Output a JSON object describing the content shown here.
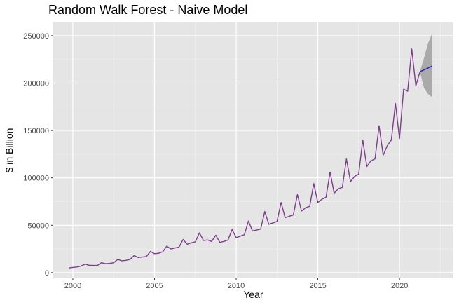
{
  "chart_data": {
    "type": "line",
    "title": "Random Walk Forest - Naive Model",
    "xlabel": "Year",
    "ylabel": "$ in Billion",
    "xlim": [
      1998.8,
      2023.3
    ],
    "ylim": [
      -6000,
      264000
    ],
    "x_ticks": [
      2000,
      2005,
      2010,
      2015,
      2020
    ],
    "y_ticks": [
      0,
      50000,
      100000,
      150000,
      200000,
      250000
    ],
    "y_tick_labels": [
      "0",
      "50000",
      "100000",
      "150000",
      "200000",
      "250000"
    ],
    "grid": true,
    "legend": "none",
    "colors": {
      "panel_background": "#e5e5e5",
      "grid_major": "#ffffff",
      "grid_minor": "#f2f2f2",
      "history_line": "#7d3c8c",
      "forecast_line": "#1f1fd1",
      "interval_band": "#a6a6a6"
    },
    "series": [
      {
        "role": "history",
        "x": [
          1999.75,
          2000.0,
          2000.25,
          2000.5,
          2000.75,
          2001.0,
          2001.25,
          2001.5,
          2001.75,
          2002.0,
          2002.25,
          2002.5,
          2002.75,
          2003.0,
          2003.25,
          2003.5,
          2003.75,
          2004.0,
          2004.25,
          2004.5,
          2004.75,
          2005.0,
          2005.25,
          2005.5,
          2005.75,
          2006.0,
          2006.25,
          2006.5,
          2006.75,
          2007.0,
          2007.25,
          2007.5,
          2007.75,
          2008.0,
          2008.25,
          2008.5,
          2008.75,
          2009.0,
          2009.25,
          2009.5,
          2009.75,
          2010.0,
          2010.25,
          2010.5,
          2010.75,
          2011.0,
          2011.25,
          2011.5,
          2011.75,
          2012.0,
          2012.25,
          2012.5,
          2012.75,
          2013.0,
          2013.25,
          2013.5,
          2013.75,
          2014.0,
          2014.25,
          2014.5,
          2014.75,
          2015.0,
          2015.25,
          2015.5,
          2015.75,
          2016.0,
          2016.25,
          2016.5,
          2016.75,
          2017.0,
          2017.25,
          2017.5,
          2017.75,
          2018.0,
          2018.25,
          2018.5,
          2018.75,
          2019.0,
          2019.25,
          2019.5,
          2019.75,
          2020.0,
          2020.25,
          2020.5,
          2020.75,
          2021.0,
          2021.25
        ],
        "values": [
          5000,
          5500,
          6000,
          7000,
          9000,
          7800,
          7600,
          7600,
          10500,
          9500,
          9800,
          10500,
          14000,
          12500,
          13000,
          14000,
          18000,
          16000,
          16500,
          17000,
          22500,
          20000,
          20500,
          22000,
          28000,
          25000,
          26000,
          27000,
          35000,
          30000,
          31500,
          32500,
          42000,
          34000,
          34500,
          33000,
          39500,
          32000,
          33000,
          34500,
          45500,
          37000,
          38500,
          40000,
          54500,
          44000,
          45000,
          46000,
          64500,
          51000,
          52500,
          54000,
          74000,
          58000,
          59500,
          61000,
          82500,
          65000,
          68500,
          70000,
          94000,
          74000,
          77500,
          79500,
          106000,
          84000,
          88500,
          90000,
          120000,
          96000,
          101500,
          104000,
          140000,
          112000,
          118000,
          120000,
          155000,
          124000,
          134000,
          140000,
          178500,
          141500,
          193500,
          191500,
          236000,
          197000,
          212000
        ]
      },
      {
        "role": "forecast",
        "x": [
          2021.25,
          2021.5,
          2021.75,
          2022.0
        ],
        "values": [
          212000,
          214000,
          216000,
          218000
        ],
        "lower": [
          212000,
          195000,
          188500,
          185000
        ],
        "upper": [
          212000,
          226500,
          242000,
          252500
        ]
      }
    ]
  }
}
